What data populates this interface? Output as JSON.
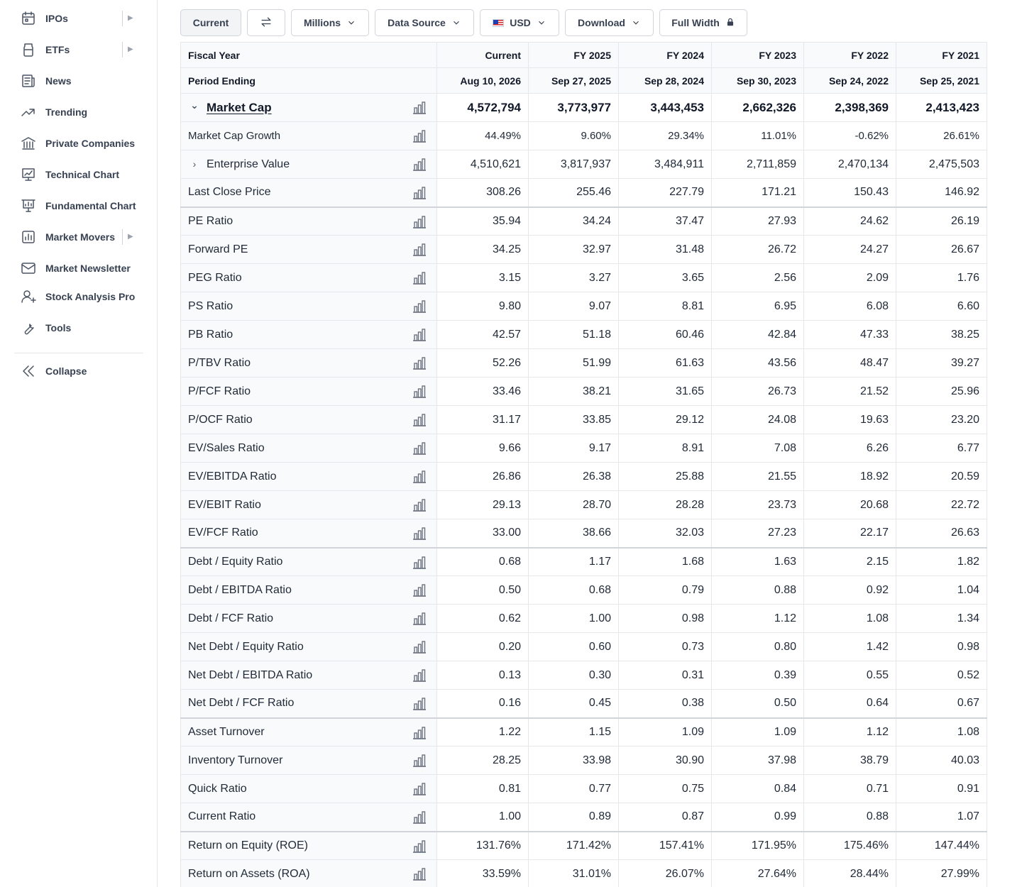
{
  "sidebar": {
    "items": [
      {
        "label": "IPOs",
        "icon": "calendar-icon",
        "has_arrow": true
      },
      {
        "label": "ETFs",
        "icon": "jar-icon",
        "has_arrow": true
      },
      {
        "label": "News",
        "icon": "newspaper-icon",
        "has_arrow": false
      },
      {
        "label": "Trending",
        "icon": "trending-icon",
        "has_arrow": false
      },
      {
        "label": "Private Companies",
        "icon": "bank-icon",
        "has_arrow": false
      },
      {
        "label": "Technical Chart",
        "icon": "chart-board-icon",
        "has_arrow": false
      },
      {
        "label": "Fundamental Chart",
        "icon": "presentation-chart-icon",
        "has_arrow": false
      },
      {
        "label": "Market Movers",
        "icon": "bar-chart-icon",
        "has_arrow": true
      },
      {
        "label": "Market Newsletter",
        "icon": "envelope-icon",
        "has_arrow": false
      },
      {
        "label": "Stock Analysis Pro",
        "icon": "user-plus-icon",
        "has_arrow": false
      },
      {
        "label": "Tools",
        "icon": "wrench-icon",
        "has_arrow": false
      }
    ],
    "arrow_glyph": "▶",
    "collapse_label": "Collapse"
  },
  "toolbar": {
    "current_label": "Current",
    "millions_label": "Millions",
    "data_source_label": "Data Source",
    "currency_label": "USD",
    "download_label": "Download",
    "full_width_label": "Full Width"
  },
  "table": {
    "header_row1_label": "Fiscal Year",
    "header_row2_label": "Period Ending",
    "columns": [
      {
        "year": "Current",
        "period": "Aug 10, 2026"
      },
      {
        "year": "FY 2025",
        "period": "Sep 27, 2025"
      },
      {
        "year": "FY 2024",
        "period": "Sep 28, 2024"
      },
      {
        "year": "FY 2023",
        "period": "Sep 30, 2023"
      },
      {
        "year": "FY 2022",
        "period": "Sep 24, 2022"
      },
      {
        "year": "FY 2021",
        "period": "Sep 25, 2021"
      }
    ],
    "rows": [
      {
        "label": "Market Cap",
        "values": [
          "4,572,794",
          "3,773,977",
          "3,443,453",
          "2,662,326",
          "2,398,369",
          "2,413,423"
        ],
        "bold": true,
        "expand": "⌄",
        "link": true
      },
      {
        "label": "Market Cap Growth",
        "values": [
          "44.49%",
          "9.60%",
          "29.34%",
          "11.01%",
          "-0.62%",
          "26.61%"
        ],
        "sub": true,
        "colored": true
      },
      {
        "label": "Enterprise Value",
        "values": [
          "4,510,621",
          "3,817,937",
          "3,484,911",
          "2,711,859",
          "2,470,134",
          "2,475,503"
        ],
        "expand": "›"
      },
      {
        "label": "Last Close Price",
        "values": [
          "308.26",
          "255.46",
          "227.79",
          "171.21",
          "150.43",
          "146.92"
        ]
      },
      {
        "label": "PE Ratio",
        "values": [
          "35.94",
          "34.24",
          "37.47",
          "27.93",
          "24.62",
          "26.19"
        ],
        "sep": true
      },
      {
        "label": "Forward PE",
        "values": [
          "34.25",
          "32.97",
          "31.48",
          "26.72",
          "24.27",
          "26.67"
        ]
      },
      {
        "label": "PEG Ratio",
        "values": [
          "3.15",
          "3.27",
          "3.65",
          "2.56",
          "2.09",
          "1.76"
        ]
      },
      {
        "label": "PS Ratio",
        "values": [
          "9.80",
          "9.07",
          "8.81",
          "6.95",
          "6.08",
          "6.60"
        ]
      },
      {
        "label": "PB Ratio",
        "values": [
          "42.57",
          "51.18",
          "60.46",
          "42.84",
          "47.33",
          "38.25"
        ]
      },
      {
        "label": "P/TBV Ratio",
        "values": [
          "52.26",
          "51.99",
          "61.63",
          "43.56",
          "48.47",
          "39.27"
        ]
      },
      {
        "label": "P/FCF Ratio",
        "values": [
          "33.46",
          "38.21",
          "31.65",
          "26.73",
          "21.52",
          "25.96"
        ]
      },
      {
        "label": "P/OCF Ratio",
        "values": [
          "31.17",
          "33.85",
          "29.12",
          "24.08",
          "19.63",
          "23.20"
        ]
      },
      {
        "label": "EV/Sales Ratio",
        "values": [
          "9.66",
          "9.17",
          "8.91",
          "7.08",
          "6.26",
          "6.77"
        ]
      },
      {
        "label": "EV/EBITDA Ratio",
        "values": [
          "26.86",
          "26.38",
          "25.88",
          "21.55",
          "18.92",
          "20.59"
        ]
      },
      {
        "label": "EV/EBIT Ratio",
        "values": [
          "29.13",
          "28.70",
          "28.28",
          "23.73",
          "20.68",
          "22.72"
        ]
      },
      {
        "label": "EV/FCF Ratio",
        "values": [
          "33.00",
          "38.66",
          "32.03",
          "27.23",
          "22.17",
          "26.63"
        ]
      },
      {
        "label": "Debt / Equity Ratio",
        "values": [
          "0.68",
          "1.17",
          "1.68",
          "1.63",
          "2.15",
          "1.82"
        ],
        "sep": true
      },
      {
        "label": "Debt / EBITDA Ratio",
        "values": [
          "0.50",
          "0.68",
          "0.79",
          "0.88",
          "0.92",
          "1.04"
        ]
      },
      {
        "label": "Debt / FCF Ratio",
        "values": [
          "0.62",
          "1.00",
          "0.98",
          "1.12",
          "1.08",
          "1.34"
        ]
      },
      {
        "label": "Net Debt / Equity Ratio",
        "values": [
          "0.20",
          "0.60",
          "0.73",
          "0.80",
          "1.42",
          "0.98"
        ]
      },
      {
        "label": "Net Debt / EBITDA Ratio",
        "values": [
          "0.13",
          "0.30",
          "0.31",
          "0.39",
          "0.55",
          "0.52"
        ]
      },
      {
        "label": "Net Debt / FCF Ratio",
        "values": [
          "0.16",
          "0.45",
          "0.38",
          "0.50",
          "0.64",
          "0.67"
        ]
      },
      {
        "label": "Asset Turnover",
        "values": [
          "1.22",
          "1.15",
          "1.09",
          "1.09",
          "1.12",
          "1.08"
        ],
        "sep": true
      },
      {
        "label": "Inventory Turnover",
        "values": [
          "28.25",
          "33.98",
          "30.90",
          "37.98",
          "38.79",
          "40.03"
        ]
      },
      {
        "label": "Quick Ratio",
        "values": [
          "0.81",
          "0.77",
          "0.75",
          "0.84",
          "0.71",
          "0.91"
        ]
      },
      {
        "label": "Current Ratio",
        "values": [
          "1.00",
          "0.89",
          "0.87",
          "0.99",
          "0.88",
          "1.07"
        ]
      },
      {
        "label": "Return on Equity (ROE)",
        "values": [
          "131.76%",
          "171.42%",
          "157.41%",
          "171.95%",
          "175.46%",
          "147.44%"
        ],
        "sep": true
      },
      {
        "label": "Return on Assets (ROA)",
        "values": [
          "33.59%",
          "31.01%",
          "26.07%",
          "27.64%",
          "28.44%",
          "27.99%"
        ]
      }
    ]
  },
  "colors": {
    "positive": "#15803d",
    "negative": "#dc2626"
  }
}
